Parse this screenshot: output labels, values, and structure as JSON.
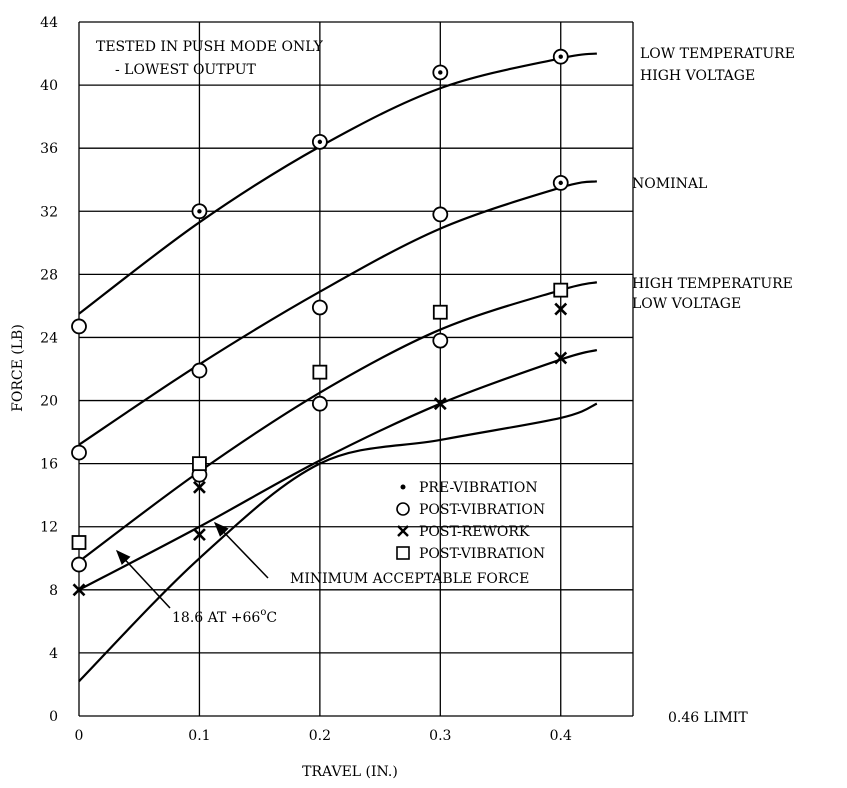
{
  "chart_data": {
    "type": "line",
    "title": "",
    "xlabel": "TRAVEL (IN.)",
    "ylabel": "FORCE (LB)",
    "xlim": [
      0,
      0.46
    ],
    "ylim": [
      0,
      44
    ],
    "x_ticks": [
      0,
      0.1,
      0.2,
      0.3,
      0.4
    ],
    "x_tick_labels": [
      "0",
      "0.1",
      "0.2",
      "0.3",
      "0.4"
    ],
    "x_limit_label": "0.46 LIMIT",
    "y_ticks": [
      0,
      4,
      8,
      12,
      16,
      20,
      24,
      28,
      32,
      36,
      40,
      44
    ],
    "y_tick_labels": [
      "0",
      "4",
      "8",
      "12",
      "16",
      "20",
      "24",
      "28",
      "32",
      "36",
      "40",
      "44"
    ],
    "grid": true,
    "note_lines": [
      "TESTED IN PUSH MODE ONLY",
      "- LOWEST OUTPUT"
    ],
    "curves": [
      {
        "label": [
          "LOW TEMPERATURE",
          "HIGH VOLTAGE"
        ],
        "x": [
          0,
          0.1,
          0.2,
          0.3,
          0.4,
          0.43
        ],
        "y": [
          25.5,
          31.3,
          36.1,
          39.8,
          41.7,
          42.0
        ]
      },
      {
        "label": [
          "NOMINAL"
        ],
        "x": [
          0,
          0.1,
          0.2,
          0.3,
          0.4,
          0.43
        ],
        "y": [
          17.2,
          22.3,
          26.9,
          30.9,
          33.5,
          33.9
        ]
      },
      {
        "label": [
          "HIGH TEMPERATURE",
          "LOW VOLTAGE"
        ],
        "x": [
          0,
          0.1,
          0.2,
          0.3,
          0.4,
          0.43
        ],
        "y": [
          9.8,
          15.5,
          20.5,
          24.5,
          27.0,
          27.5
        ]
      },
      {
        "label": [],
        "x": [
          0,
          0.1,
          0.2,
          0.3,
          0.4,
          0.43
        ],
        "y": [
          8.0,
          12.0,
          16.2,
          19.8,
          22.6,
          23.2
        ]
      },
      {
        "label": [],
        "x": [
          0,
          0.1,
          0.2,
          0.3,
          0.4,
          0.43
        ],
        "y": [
          2.2,
          10.0,
          16.0,
          17.5,
          18.9,
          19.8
        ]
      }
    ],
    "series": [
      {
        "name": "PRE-VIBRATION",
        "marker": "dot",
        "x": [
          0.1,
          0.2,
          0.3,
          0.4,
          0.4
        ],
        "y": [
          32,
          36.4,
          40.8,
          41.8,
          33.8
        ]
      },
      {
        "name": "POST-VIBRATION",
        "marker": "circle",
        "x": [
          0,
          0.1,
          0.2,
          0.3,
          0.4,
          0,
          0.1,
          0.2,
          0.3,
          0.4,
          0,
          0.1,
          0.2,
          0.3
        ],
        "y": [
          24.7,
          32,
          36.4,
          40.8,
          41.8,
          16.7,
          21.9,
          25.9,
          31.8,
          33.8,
          9.6,
          15.3,
          19.8,
          23.8
        ]
      },
      {
        "name": "POST-REWORK",
        "marker": "x",
        "x": [
          0,
          0.1,
          0.1,
          0.3,
          0.4,
          0.4
        ],
        "y": [
          8,
          11.5,
          14.5,
          19.8,
          22.7,
          25.8
        ]
      },
      {
        "name": "POST-VIBRATION",
        "marker": "square",
        "x": [
          0,
          0.1,
          0.2,
          0.3,
          0.4
        ],
        "y": [
          11,
          16,
          21.8,
          25.6,
          27
        ]
      }
    ],
    "annotations": [
      {
        "text": "MINIMUM ACCEPTABLE FORCE",
        "arrow_to": [
          0.111,
          10.3
        ]
      },
      {
        "text": "18.6 AT +66",
        "superscript": "o",
        "suffix": "C",
        "arrow_to": [
          0.02,
          8.7
        ]
      }
    ]
  }
}
